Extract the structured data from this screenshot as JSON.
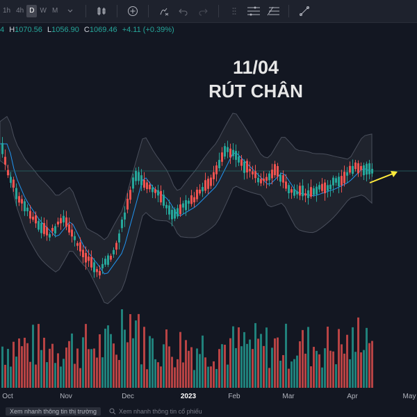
{
  "toolbar": {
    "timeframes": [
      "1h",
      "4h",
      "D",
      "W",
      "M"
    ],
    "active_timeframe": "D"
  },
  "ohlc": {
    "open_value": "4",
    "high_label": "H",
    "high_value": "1070.56",
    "low_label": "L",
    "low_value": "1056.90",
    "close_label": "C",
    "close_value": "1069.46",
    "change": "+4.11 (+0.39%)"
  },
  "annotation": {
    "line1": "11/04",
    "line2": "RÚT CHÂN"
  },
  "xaxis": [
    "Oct",
    "Nov",
    "Dec",
    "2023",
    "Feb",
    "Mar",
    "Apr",
    "May"
  ],
  "bottom": {
    "market_button": "Xem nhanh thông tin thị trường",
    "stock_search": "Xem nhanh thông tin cổ phiếu"
  },
  "colors": {
    "up": "#26a69a",
    "down": "#ef5350",
    "ma": "#2196f3",
    "arrow": "#ffeb3b"
  },
  "chart_data": {
    "type": "candlestick",
    "x_start": "2022-09-29",
    "x_end": "2023-04-11",
    "last_close": 1069.46
  }
}
